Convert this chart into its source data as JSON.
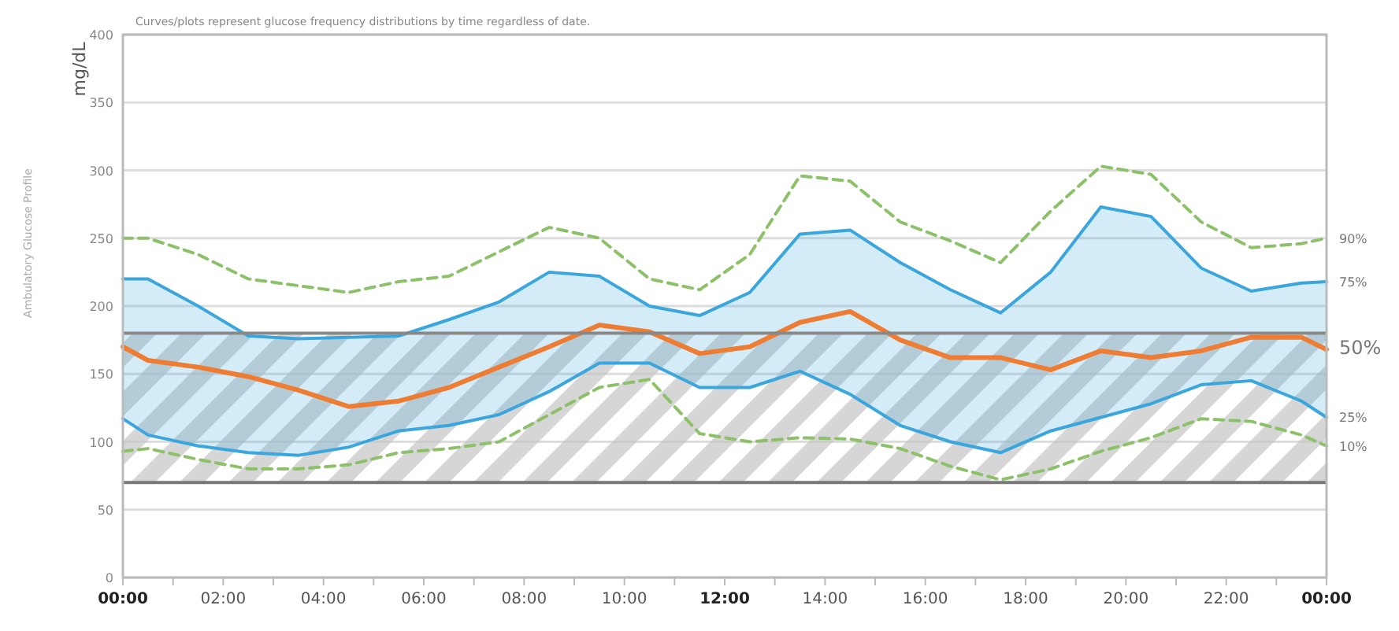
{
  "chart_data": {
    "type": "line",
    "title": "Curves/plots represent glucose frequency distributions by time regardless of date.",
    "ylabel": "mg/dL",
    "annotations": [
      "Ambulatory Glucose Profile"
    ],
    "x": [
      0,
      0.5,
      1.5,
      2.5,
      3.5,
      4.5,
      5.5,
      6.5,
      7.5,
      8.5,
      9.5,
      10.5,
      11.5,
      12.5,
      13.5,
      14.5,
      15.5,
      16.5,
      17.5,
      18.5,
      19.5,
      20.5,
      21.5,
      22.5,
      23.5,
      24
    ],
    "series": [
      {
        "name": "90%",
        "color": "#8cc16a",
        "line_style": "dashed",
        "values": [
          250,
          250,
          238,
          220,
          215,
          210,
          218,
          222,
          240,
          258,
          250,
          220,
          212,
          238,
          296,
          292,
          262,
          248,
          232,
          270,
          303,
          297,
          262,
          243,
          246,
          250
        ]
      },
      {
        "name": "75%",
        "color": "#3aa6dd",
        "values": [
          220,
          220,
          200,
          178,
          176,
          177,
          178,
          190,
          203,
          225,
          222,
          200,
          193,
          210,
          253,
          256,
          232,
          212,
          195,
          225,
          273,
          266,
          228,
          211,
          217,
          218
        ],
        "lower": [
          117,
          105,
          97,
          92,
          90,
          96,
          108,
          112,
          120,
          137,
          158,
          158,
          140,
          140,
          152,
          135,
          112,
          100,
          92,
          108,
          118,
          128,
          142,
          145,
          130,
          118
        ],
        "upper": [
          220,
          220,
          200,
          178,
          176,
          177,
          178,
          190,
          203,
          225,
          222,
          200,
          193,
          210,
          253,
          256,
          232,
          212,
          195,
          225,
          273,
          266,
          228,
          211,
          217,
          218
        ]
      },
      {
        "name": "50%",
        "color": "#ee7d33",
        "values": [
          170,
          160,
          155,
          148,
          138,
          126,
          130,
          140,
          155,
          170,
          186,
          181,
          165,
          170,
          188,
          196,
          175,
          162,
          162,
          153,
          167,
          162,
          167,
          177,
          177,
          168
        ]
      },
      {
        "name": "25%",
        "color": "#3aa6dd",
        "values": [
          117,
          105,
          97,
          92,
          90,
          96,
          108,
          112,
          120,
          137,
          158,
          158,
          140,
          140,
          152,
          135,
          112,
          100,
          92,
          108,
          118,
          128,
          142,
          145,
          130,
          118
        ]
      },
      {
        "name": "10%",
        "color": "#8cc16a",
        "line_style": "dashed",
        "values": [
          93,
          95,
          87,
          80,
          80,
          83,
          92,
          95,
          100,
          120,
          140,
          146,
          106,
          100,
          103,
          102,
          95,
          82,
          72,
          80,
          93,
          103,
          117,
          115,
          105,
          97
        ]
      }
    ],
    "xlim": [
      0,
      24
    ],
    "xticks": [
      {
        "value": 0,
        "label": "00:00"
      },
      {
        "value": 1,
        "label": null
      },
      {
        "value": 2,
        "label": "02:00"
      },
      {
        "value": 3,
        "label": null
      },
      {
        "value": 4,
        "label": "04:00"
      },
      {
        "value": 5,
        "label": null
      },
      {
        "value": 6,
        "label": "06:00"
      },
      {
        "value": 7,
        "label": null
      },
      {
        "value": 8,
        "label": "08:00"
      },
      {
        "value": 9,
        "label": null
      },
      {
        "value": 10,
        "label": "10:00"
      },
      {
        "value": 11,
        "label": null
      },
      {
        "value": 12,
        "label": "12:00"
      },
      {
        "value": 13,
        "label": null
      },
      {
        "value": 14,
        "label": "14:00"
      },
      {
        "value": 15,
        "label": null
      },
      {
        "value": 16,
        "label": "16:00"
      },
      {
        "value": 17,
        "label": null
      },
      {
        "value": 18,
        "label": "18:00"
      },
      {
        "value": 19,
        "label": null
      },
      {
        "value": 20,
        "label": "20:00"
      },
      {
        "value": 21,
        "label": null
      },
      {
        "value": 22,
        "label": "22:00"
      },
      {
        "value": 23,
        "label": null
      },
      {
        "value": 24,
        "label": "00:00"
      }
    ],
    "ylim": [
      0,
      400
    ],
    "yticks": [
      0,
      50,
      100,
      150,
      200,
      250,
      300,
      350,
      400
    ],
    "grid": "y",
    "bands": [
      {
        "axis": "y",
        "from": 70,
        "to": 180,
        "color": "#c4c4c4"
      }
    ],
    "ref_lines": [
      {
        "axis": "y",
        "value": 180,
        "color": "#888888"
      },
      {
        "axis": "y",
        "value": 70,
        "color": "#777777"
      }
    ],
    "marker": "none"
  }
}
